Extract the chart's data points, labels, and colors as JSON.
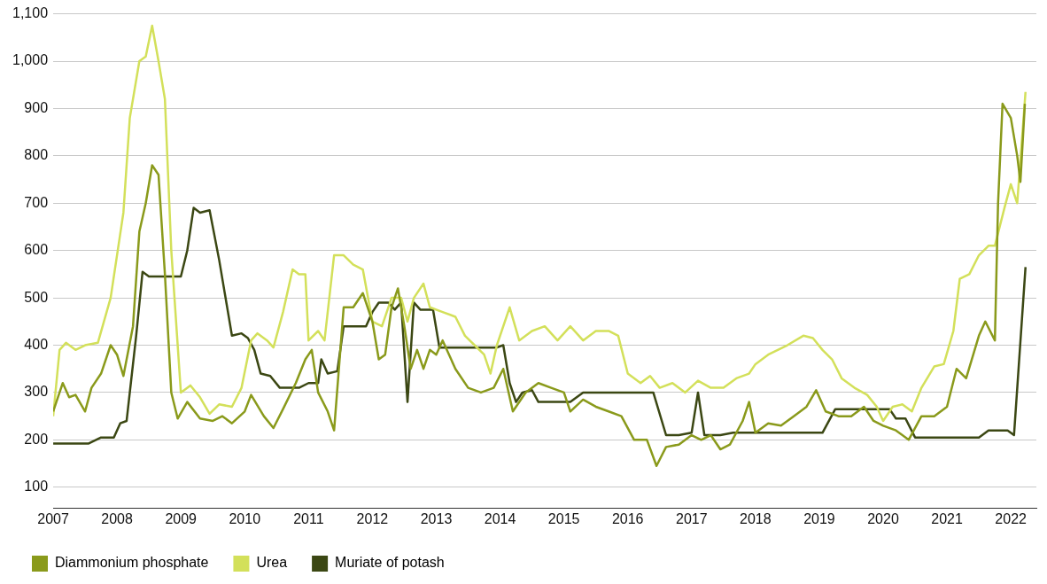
{
  "chart_data": {
    "type": "line",
    "legend": "bottom",
    "grid": "y",
    "marker": "none",
    "line_style": "solid",
    "xlim": [
      2007,
      2022.4
    ],
    "xticks": [
      2007,
      2008,
      2009,
      2010,
      2011,
      2012,
      2013,
      2014,
      2015,
      2016,
      2017,
      2018,
      2019,
      2020,
      2021,
      2022
    ],
    "ylim": [
      55,
      1100
    ],
    "yticks": [
      {
        "value": 100,
        "label": "100"
      },
      {
        "value": 200,
        "label": "200"
      },
      {
        "value": 300,
        "label": "300"
      },
      {
        "value": 400,
        "label": "400"
      },
      {
        "value": 500,
        "label": "500"
      },
      {
        "value": 600,
        "label": "600"
      },
      {
        "value": 700,
        "label": "700"
      },
      {
        "value": 800,
        "label": "800"
      },
      {
        "value": 900,
        "label": "900"
      },
      {
        "value": 1000,
        "label": "1,000"
      },
      {
        "value": 1100,
        "label": "1,100"
      }
    ],
    "series": [
      {
        "name": "Diammonium phosphate",
        "color": "#8a9a1b",
        "x": [
          2007.0,
          2007.1,
          2007.15,
          2007.25,
          2007.35,
          2007.5,
          2007.6,
          2007.75,
          2007.9,
          2008.0,
          2008.1,
          2008.25,
          2008.35,
          2008.45,
          2008.55,
          2008.65,
          2008.75,
          2008.85,
          2008.95,
          2009.1,
          2009.3,
          2009.5,
          2009.65,
          2009.8,
          2010.0,
          2010.1,
          2010.3,
          2010.45,
          2010.6,
          2010.8,
          2010.95,
          2011.05,
          2011.15,
          2011.3,
          2011.4,
          2011.55,
          2011.7,
          2011.85,
          2012.0,
          2012.1,
          2012.2,
          2012.3,
          2012.4,
          2012.5,
          2012.6,
          2012.7,
          2012.8,
          2012.9,
          2013.0,
          2013.1,
          2013.3,
          2013.5,
          2013.7,
          2013.9,
          2014.05,
          2014.2,
          2014.4,
          2014.6,
          2014.8,
          2015.0,
          2015.1,
          2015.3,
          2015.5,
          2015.7,
          2015.9,
          2016.1,
          2016.3,
          2016.45,
          2016.6,
          2016.8,
          2017.0,
          2017.15,
          2017.3,
          2017.45,
          2017.6,
          2017.8,
          2017.9,
          2018.0,
          2018.2,
          2018.4,
          2018.6,
          2018.8,
          2018.95,
          2019.1,
          2019.3,
          2019.5,
          2019.7,
          2019.85,
          2020.0,
          2020.2,
          2020.4,
          2020.6,
          2020.8,
          2021.0,
          2021.15,
          2021.3,
          2021.5,
          2021.6,
          2021.75,
          2021.8,
          2021.87,
          2022.0,
          2022.1,
          2022.15,
          2022.22
        ],
        "values": [
          260,
          300,
          320,
          290,
          295,
          260,
          310,
          340,
          400,
          380,
          335,
          440,
          640,
          700,
          780,
          760,
          550,
          300,
          245,
          280,
          245,
          240,
          250,
          235,
          260,
          295,
          250,
          225,
          265,
          320,
          370,
          390,
          300,
          260,
          220,
          480,
          480,
          510,
          450,
          370,
          380,
          480,
          520,
          440,
          350,
          390,
          350,
          390,
          380,
          410,
          350,
          310,
          300,
          310,
          350,
          260,
          300,
          320,
          310,
          300,
          260,
          285,
          270,
          260,
          250,
          200,
          200,
          145,
          185,
          190,
          210,
          200,
          210,
          180,
          190,
          240,
          280,
          215,
          235,
          230,
          250,
          270,
          305,
          260,
          250,
          250,
          270,
          240,
          230,
          220,
          200,
          250,
          250,
          270,
          350,
          330,
          420,
          450,
          410,
          700,
          910,
          880,
          800,
          745,
          910
        ]
      },
      {
        "name": "Urea",
        "color": "#d3e05a",
        "x": [
          2007.0,
          2007.1,
          2007.2,
          2007.35,
          2007.5,
          2007.7,
          2007.9,
          2008.1,
          2008.2,
          2008.35,
          2008.45,
          2008.55,
          2008.65,
          2008.75,
          2008.85,
          2009.0,
          2009.15,
          2009.3,
          2009.45,
          2009.6,
          2009.8,
          2009.95,
          2010.1,
          2010.2,
          2010.35,
          2010.45,
          2010.6,
          2010.75,
          2010.85,
          2010.95,
          2011.0,
          2011.15,
          2011.25,
          2011.4,
          2011.55,
          2011.7,
          2011.85,
          2012.0,
          2012.15,
          2012.3,
          2012.45,
          2012.55,
          2012.65,
          2012.8,
          2012.9,
          2013.1,
          2013.3,
          2013.45,
          2013.6,
          2013.75,
          2013.85,
          2013.95,
          2014.15,
          2014.3,
          2014.5,
          2014.7,
          2014.9,
          2015.1,
          2015.3,
          2015.5,
          2015.7,
          2015.85,
          2016.0,
          2016.2,
          2016.35,
          2016.5,
          2016.7,
          2016.9,
          2017.1,
          2017.3,
          2017.5,
          2017.7,
          2017.9,
          2018.0,
          2018.2,
          2018.5,
          2018.75,
          2018.9,
          2019.05,
          2019.2,
          2019.35,
          2019.55,
          2019.75,
          2019.9,
          2020.0,
          2020.15,
          2020.3,
          2020.45,
          2020.6,
          2020.8,
          2020.95,
          2021.1,
          2021.2,
          2021.35,
          2021.5,
          2021.65,
          2021.75,
          2021.9,
          2022.0,
          2022.1,
          2022.23
        ],
        "values": [
          250,
          390,
          405,
          390,
          400,
          405,
          500,
          680,
          880,
          1000,
          1010,
          1075,
          1000,
          920,
          600,
          300,
          315,
          290,
          255,
          275,
          270,
          310,
          410,
          425,
          410,
          395,
          470,
          560,
          550,
          550,
          410,
          430,
          410,
          590,
          590,
          570,
          560,
          450,
          440,
          500,
          500,
          450,
          500,
          530,
          480,
          470,
          460,
          420,
          400,
          380,
          340,
          400,
          480,
          410,
          430,
          440,
          410,
          440,
          410,
          430,
          430,
          420,
          340,
          320,
          335,
          310,
          320,
          300,
          325,
          310,
          310,
          330,
          340,
          360,
          380,
          400,
          420,
          415,
          390,
          370,
          330,
          310,
          295,
          270,
          240,
          270,
          275,
          260,
          310,
          355,
          360,
          430,
          540,
          550,
          590,
          610,
          610,
          690,
          740,
          700,
          935
        ]
      },
      {
        "name": "Muriate of potash",
        "color": "#3b4713",
        "x": [
          2007.0,
          2007.55,
          2007.75,
          2007.95,
          2008.05,
          2008.15,
          2008.3,
          2008.4,
          2008.5,
          2008.75,
          2009.0,
          2009.1,
          2009.2,
          2009.3,
          2009.45,
          2009.6,
          2009.8,
          2009.95,
          2010.05,
          2010.15,
          2010.25,
          2010.4,
          2010.55,
          2010.85,
          2011.0,
          2011.15,
          2011.2,
          2011.3,
          2011.45,
          2011.55,
          2011.75,
          2011.9,
          2012.0,
          2012.1,
          2012.25,
          2012.35,
          2012.45,
          2012.55,
          2012.65,
          2012.75,
          2012.95,
          2013.05,
          2013.3,
          2013.6,
          2013.95,
          2014.05,
          2014.15,
          2014.25,
          2014.35,
          2014.5,
          2014.6,
          2014.8,
          2015.1,
          2015.3,
          2015.8,
          2016.4,
          2016.6,
          2016.8,
          2017.0,
          2017.1,
          2017.2,
          2017.45,
          2017.65,
          2018.0,
          2018.5,
          2018.9,
          2019.05,
          2019.25,
          2019.55,
          2019.8,
          2020.1,
          2020.2,
          2020.35,
          2020.5,
          2020.8,
          2021.0,
          2021.5,
          2021.65,
          2021.95,
          2022.05,
          2022.23
        ],
        "values": [
          192,
          192,
          205,
          205,
          235,
          240,
          420,
          555,
          545,
          545,
          545,
          600,
          690,
          680,
          685,
          580,
          420,
          425,
          415,
          390,
          340,
          335,
          310,
          310,
          320,
          320,
          370,
          340,
          345,
          440,
          440,
          440,
          470,
          490,
          490,
          475,
          490,
          280,
          490,
          475,
          475,
          395,
          395,
          395,
          395,
          400,
          320,
          280,
          300,
          305,
          280,
          280,
          280,
          300,
          300,
          300,
          210,
          210,
          215,
          300,
          210,
          210,
          215,
          215,
          215,
          215,
          215,
          265,
          265,
          265,
          265,
          245,
          245,
          205,
          205,
          205,
          205,
          220,
          220,
          210,
          565
        ]
      }
    ]
  }
}
